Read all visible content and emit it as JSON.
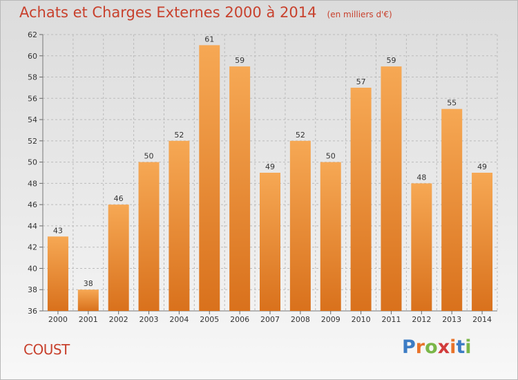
{
  "header": {
    "title": "Achats et Charges Externes 2000 à 2014",
    "subtitle": "(en milliers d'€)"
  },
  "footer": {
    "commune": "COUST",
    "logo_text": "Proxiti"
  },
  "colors": {
    "bar_top": "#f6a854",
    "bar_bottom": "#d9711c",
    "title": "#c8412d",
    "grid": "#bbbbbb",
    "logo": [
      "#3c7cc4",
      "#e8732a",
      "#7ab648",
      "#d23c3c",
      "#e8732a",
      "#3c7cc4",
      "#7ab648"
    ]
  },
  "chart_data": {
    "type": "bar",
    "categories": [
      "2000",
      "2001",
      "2002",
      "2003",
      "2004",
      "2005",
      "2006",
      "2007",
      "2008",
      "2009",
      "2010",
      "2011",
      "2012",
      "2013",
      "2014"
    ],
    "values": [
      43,
      38,
      46,
      50,
      52,
      61,
      59,
      49,
      52,
      50,
      57,
      59,
      48,
      55,
      49
    ],
    "title": "Achats et Charges Externes 2000 à 2014",
    "subtitle": "(en milliers d'€)",
    "ylim": [
      36,
      62
    ],
    "yticks": [
      36,
      38,
      40,
      42,
      44,
      46,
      48,
      50,
      52,
      54,
      56,
      58,
      60,
      62
    ],
    "grid": true,
    "data_labels": true
  }
}
